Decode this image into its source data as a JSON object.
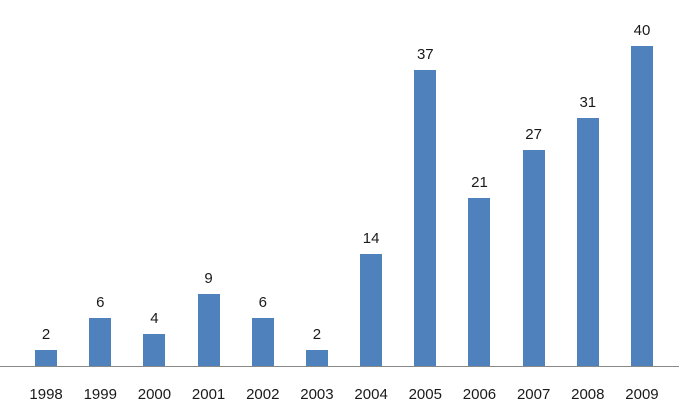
{
  "chart_data": {
    "type": "bar",
    "categories": [
      "1998",
      "1999",
      "2000",
      "2001",
      "2002",
      "2003",
      "2004",
      "2005",
      "2006",
      "2007",
      "2008",
      "2009"
    ],
    "values": [
      2,
      6,
      4,
      9,
      6,
      2,
      14,
      37,
      21,
      27,
      31,
      40
    ],
    "title": "",
    "xlabel": "",
    "ylabel": "",
    "ylim": [
      0,
      45
    ],
    "grid": false,
    "legend_position": "none",
    "data_labels_shown": true,
    "bar_color": "#4F81BD",
    "axis_line_color": "#898989",
    "label_color": "#1a1a1a"
  }
}
